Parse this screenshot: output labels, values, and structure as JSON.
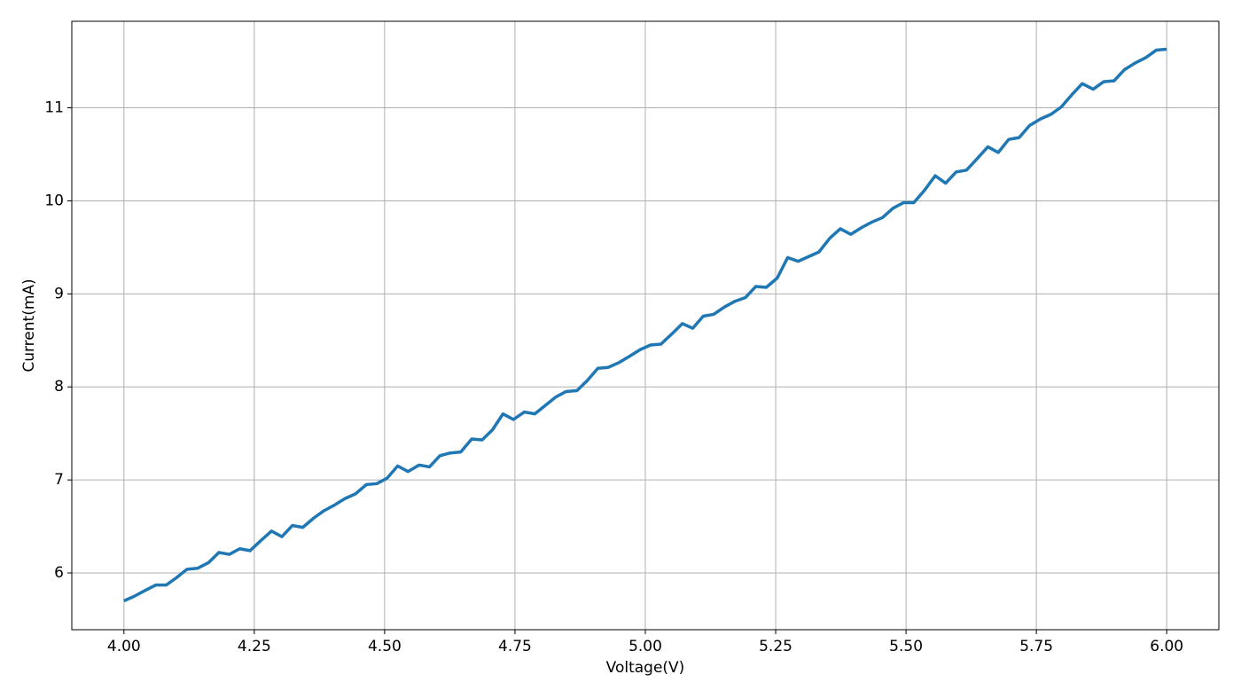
{
  "chart_data": {
    "type": "line",
    "xlabel": "Voltage(V)",
    "ylabel": "Current(mA)",
    "xlim": [
      3.9,
      6.1
    ],
    "ylim": [
      5.39,
      11.93
    ],
    "xticks": [
      {
        "value": 4,
        "label": "4.00"
      },
      {
        "value": 4.25,
        "label": "4.25"
      },
      {
        "value": 4.5,
        "label": "4.50"
      },
      {
        "value": 4.75,
        "label": "4.75"
      },
      {
        "value": 5,
        "label": "5.00"
      },
      {
        "value": 5.25,
        "label": "5.25"
      },
      {
        "value": 5.5,
        "label": "5.50"
      },
      {
        "value": 5.75,
        "label": "5.75"
      },
      {
        "value": 6,
        "label": "6.00"
      }
    ],
    "yticks": [
      6,
      7,
      8,
      9,
      10,
      11
    ],
    "grid": true,
    "x": [
      4.0,
      4.02,
      4.04,
      4.061,
      4.081,
      4.101,
      4.121,
      4.141,
      4.162,
      4.182,
      4.202,
      4.222,
      4.242,
      4.263,
      4.283,
      4.303,
      4.323,
      4.343,
      4.364,
      4.384,
      4.404,
      4.424,
      4.444,
      4.465,
      4.485,
      4.505,
      4.525,
      4.545,
      4.566,
      4.586,
      4.606,
      4.626,
      4.646,
      4.667,
      4.687,
      4.707,
      4.727,
      4.747,
      4.768,
      4.788,
      4.808,
      4.828,
      4.848,
      4.869,
      4.889,
      4.909,
      4.929,
      4.949,
      4.97,
      4.99,
      5.01,
      5.03,
      5.051,
      5.071,
      5.091,
      5.111,
      5.131,
      5.152,
      5.172,
      5.192,
      5.212,
      5.232,
      5.253,
      5.273,
      5.293,
      5.313,
      5.333,
      5.354,
      5.374,
      5.394,
      5.414,
      5.434,
      5.455,
      5.475,
      5.495,
      5.515,
      5.535,
      5.556,
      5.576,
      5.596,
      5.616,
      5.636,
      5.657,
      5.677,
      5.697,
      5.717,
      5.737,
      5.758,
      5.778,
      5.798,
      5.818,
      5.838,
      5.859,
      5.879,
      5.899,
      5.919,
      5.939,
      5.96,
      5.98,
      6.0
    ],
    "series": [
      {
        "name": "Current",
        "color": "#1f77b4",
        "values": [
          5.7,
          5.75,
          5.81,
          5.87,
          5.87,
          5.95,
          6.04,
          6.05,
          6.11,
          6.22,
          6.2,
          6.26,
          6.24,
          6.35,
          6.45,
          6.39,
          6.51,
          6.49,
          6.59,
          6.67,
          6.73,
          6.8,
          6.85,
          6.95,
          6.96,
          7.02,
          7.15,
          7.09,
          7.16,
          7.14,
          7.26,
          7.29,
          7.3,
          7.44,
          7.43,
          7.54,
          7.71,
          7.65,
          7.73,
          7.71,
          7.8,
          7.89,
          7.95,
          7.96,
          8.07,
          8.2,
          8.21,
          8.26,
          8.33,
          8.4,
          8.45,
          8.46,
          8.57,
          8.68,
          8.63,
          8.76,
          8.78,
          8.86,
          8.92,
          8.96,
          9.08,
          9.07,
          9.17,
          9.39,
          9.35,
          9.4,
          9.45,
          9.6,
          9.7,
          9.64,
          9.71,
          9.77,
          9.82,
          9.92,
          9.98,
          9.98,
          10.11,
          10.27,
          10.19,
          10.31,
          10.33,
          10.45,
          10.58,
          10.52,
          10.66,
          10.68,
          10.81,
          10.88,
          10.93,
          11.01,
          11.14,
          11.26,
          11.2,
          11.28,
          11.29,
          11.41,
          11.48,
          11.54,
          11.62,
          11.63
        ]
      }
    ]
  }
}
